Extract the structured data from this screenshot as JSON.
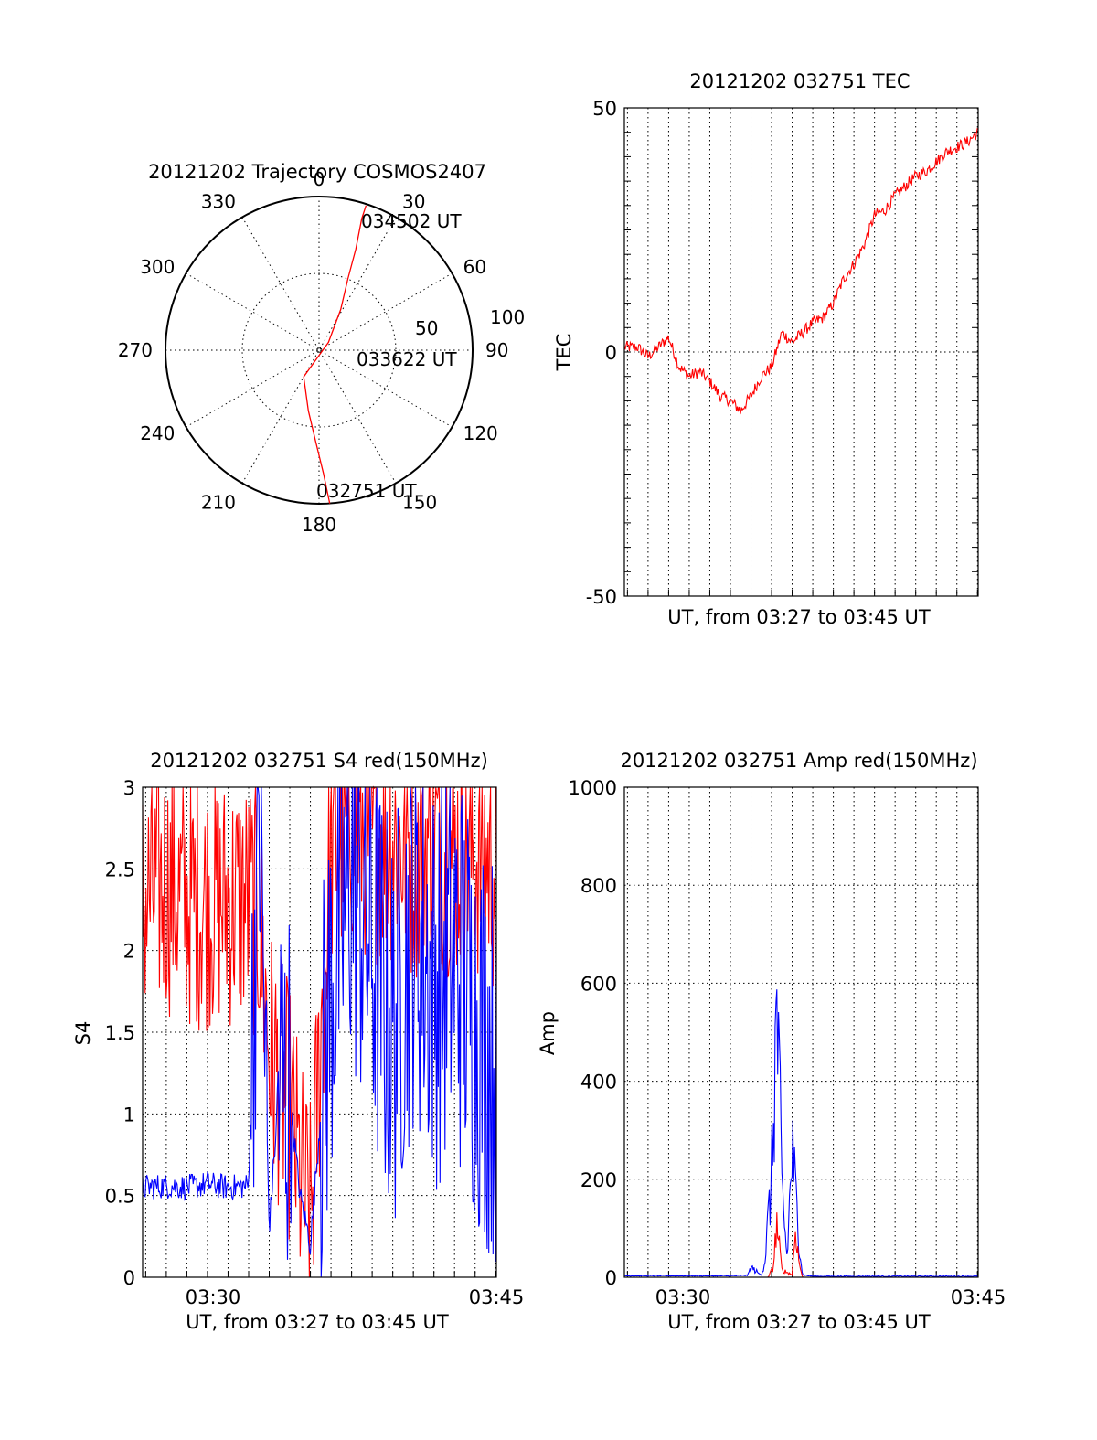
{
  "chart_data": [
    {
      "id": "trajectory",
      "type": "polar",
      "title": "20121202 Trajectory COSMOS2407",
      "angle_labels": [
        "0",
        "30",
        "60",
        "90",
        "120",
        "150",
        "180",
        "210",
        "240",
        "270",
        "300",
        "330"
      ],
      "radial_labels": [
        "50",
        "100"
      ],
      "rmax": 100,
      "trajectory": [
        [
          176,
          100
        ],
        [
          178,
          80
        ],
        [
          182,
          60
        ],
        [
          190,
          40
        ],
        [
          210,
          20
        ],
        [
          50,
          8
        ],
        [
          28,
          30
        ],
        [
          22,
          50
        ],
        [
          20,
          70
        ],
        [
          18,
          90
        ],
        [
          18,
          99
        ]
      ],
      "annotations": [
        {
          "text": "032751 UT",
          "point": "start"
        },
        {
          "text": "033622 UT",
          "point": "mid"
        },
        {
          "text": "034502 UT",
          "point": "end"
        }
      ],
      "color": "#ff0000"
    },
    {
      "id": "tec",
      "type": "line",
      "title": "20121202 032751 TEC",
      "xlabel": "UT, from 03:27 to 03:45 UT",
      "ylabel": "TEC",
      "xlim": [
        "03:27:51",
        "03:45:02"
      ],
      "ylim": [
        -50,
        50
      ],
      "yticks": [
        "50",
        "0",
        "-50"
      ],
      "series": [
        {
          "color": "#ff0000",
          "x": [
            "03:27:51",
            "03:28:30",
            "03:29:00",
            "03:29:30",
            "03:30:00",
            "03:30:30",
            "03:31:00",
            "03:31:30",
            "03:32:00",
            "03:32:30",
            "03:33:00",
            "03:33:30",
            "03:34:00",
            "03:34:30",
            "03:35:00",
            "03:35:30",
            "03:36:00",
            "03:36:30",
            "03:37:00",
            "03:37:30",
            "03:38:00",
            "03:38:30",
            "03:39:00",
            "03:39:30",
            "03:40:00",
            "03:40:30",
            "03:41:00",
            "03:41:30",
            "03:42:00",
            "03:42:30",
            "03:43:00",
            "03:43:30",
            "03:44:00",
            "03:44:30",
            "03:45:02"
          ],
          "y": [
            1,
            1,
            -1,
            1,
            3,
            -3,
            -5,
            -4,
            -6,
            -9,
            -10,
            -12,
            -9,
            -5,
            -3,
            4,
            2,
            4,
            6,
            7,
            10,
            15,
            18,
            22,
            28,
            29,
            32,
            34,
            36,
            37,
            39,
            41,
            42,
            43,
            45
          ]
        }
      ]
    },
    {
      "id": "s4",
      "type": "line",
      "title": "20121202 032751 S4 red(150MHz)",
      "xlabel": "UT, from 03:27 to 03:45 UT",
      "ylabel": "S4",
      "xlim": [
        "03:27:51",
        "03:45:02"
      ],
      "ylim": [
        0,
        3
      ],
      "yticks": [
        "0",
        "0.5",
        "1",
        "1.5",
        "2",
        "2.5",
        "3"
      ],
      "xticks": [
        "03:30",
        "03:45"
      ],
      "series": [
        {
          "color": "#ff0000",
          "x": [
            "03:27:51",
            "03:29:00",
            "03:30:00",
            "03:31:00",
            "03:32:00",
            "03:33:00",
            "03:33:30",
            "03:34:00",
            "03:34:30",
            "03:35:00",
            "03:35:30",
            "03:36:00",
            "03:37:00",
            "03:38:00",
            "03:39:00",
            "03:40:00",
            "03:41:00",
            "03:42:00",
            "03:43:00",
            "03:44:00",
            "03:45:02"
          ],
          "y": [
            2.3,
            2.4,
            2.3,
            2.3,
            2.3,
            2.3,
            2.2,
            1.4,
            1.2,
            1.0,
            0.6,
            0.3,
            2.6,
            2.8,
            2.7,
            2.7,
            2.6,
            2.7,
            2.6,
            2.6,
            2.5
          ]
        },
        {
          "color": "#0000ff",
          "x": [
            "03:27:51",
            "03:29:00",
            "03:30:00",
            "03:31:00",
            "03:32:00",
            "03:33:00",
            "03:33:30",
            "03:34:00",
            "03:34:30",
            "03:35:00",
            "03:35:30",
            "03:36:00",
            "03:37:00",
            "03:38:00",
            "03:39:00",
            "03:40:00",
            "03:41:00",
            "03:42:00",
            "03:43:00",
            "03:44:00",
            "03:45:02"
          ],
          "y": [
            0.55,
            0.56,
            0.55,
            0.57,
            0.55,
            0.56,
            3.0,
            0.3,
            1.2,
            1.1,
            0.5,
            0.2,
            1.8,
            2.5,
            2.0,
            1.5,
            2.2,
            1.8,
            2.0,
            1.6,
            1.3
          ]
        }
      ]
    },
    {
      "id": "amp",
      "type": "line",
      "title": "20121202 032751 Amp red(150MHz)",
      "xlabel": "UT, from 03:27 to 03:45 UT",
      "ylabel": "Amp",
      "xlim": [
        "03:27:51",
        "03:45:02"
      ],
      "ylim": [
        0,
        1000
      ],
      "yticks": [
        "0",
        "200",
        "400",
        "600",
        "800",
        "1000"
      ],
      "xticks": [
        "03:30",
        "03:45"
      ],
      "series": [
        {
          "color": "#0000ff",
          "x": [
            "03:27:51",
            "03:30:00",
            "03:33:00",
            "03:33:50",
            "03:34:00",
            "03:34:30",
            "03:34:40",
            "03:35:00",
            "03:35:15",
            "03:35:30",
            "03:35:45",
            "03:36:00",
            "03:36:15",
            "03:36:30",
            "03:37:00",
            "03:45:02"
          ],
          "y": [
            3,
            3,
            3,
            4,
            20,
            4,
            30,
            200,
            545,
            180,
            40,
            260,
            120,
            5,
            2,
            2
          ]
        },
        {
          "color": "#ff0000",
          "x": [
            "03:27:51",
            "03:34:50",
            "03:35:05",
            "03:35:15",
            "03:35:30",
            "03:36:00",
            "03:36:10",
            "03:36:20",
            "03:36:30",
            "03:45:02"
          ],
          "y": [
            0,
            0,
            20,
            110,
            15,
            5,
            100,
            30,
            0,
            0
          ]
        }
      ]
    }
  ]
}
